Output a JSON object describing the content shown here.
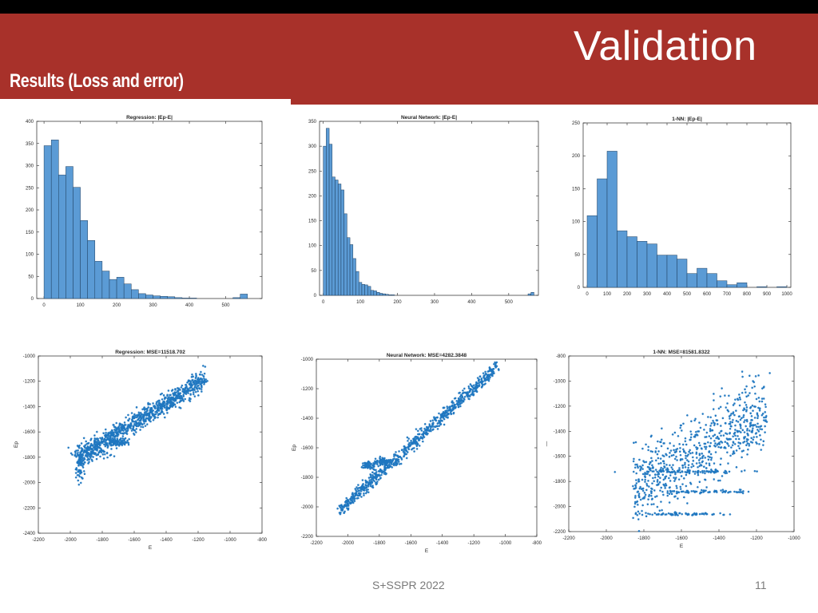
{
  "header": {
    "title": "Validation",
    "subtitle": "Results (Loss and error)"
  },
  "footer": {
    "text": "S+SSPR 2022",
    "page_number": "11"
  },
  "colors": {
    "header_bg": "#a8312a",
    "bar_fill": "#5b9bd5",
    "scatter": "#1f77c0"
  },
  "chart_data": [
    {
      "type": "bar",
      "title": "Regression: |Ep-E|",
      "xlim": [
        -20,
        600
      ],
      "ylim": [
        0,
        400
      ],
      "xticks": [
        0,
        100,
        200,
        300,
        400,
        500
      ],
      "yticks": [
        0,
        50,
        100,
        150,
        200,
        250,
        300,
        350,
        400
      ],
      "bin_width": 20,
      "bin_starts": [
        0,
        20,
        40,
        60,
        80,
        100,
        120,
        140,
        160,
        180,
        200,
        220,
        240,
        260,
        280,
        300,
        320,
        340,
        360,
        380,
        400,
        420,
        440,
        460,
        480,
        500,
        520,
        540
      ],
      "values": [
        345,
        358,
        279,
        298,
        251,
        176,
        131,
        84,
        62,
        43,
        48,
        33,
        20,
        11,
        8,
        6,
        5,
        4,
        2,
        1,
        1,
        0,
        0,
        0,
        0,
        0,
        2,
        10
      ]
    },
    {
      "type": "bar",
      "title": "Neural Network: |Ep-E|",
      "xlim": [
        -10,
        580
      ],
      "ylim": [
        0,
        350
      ],
      "xticks": [
        0,
        100,
        200,
        300,
        400,
        500
      ],
      "yticks": [
        0,
        50,
        100,
        150,
        200,
        250,
        300,
        350
      ],
      "bin_width": 8,
      "bin_starts": [
        0,
        8,
        16,
        24,
        32,
        40,
        48,
        56,
        64,
        72,
        80,
        88,
        96,
        104,
        112,
        120,
        128,
        136,
        144,
        152,
        160,
        168,
        176,
        184,
        192,
        552,
        560
      ],
      "values": [
        300,
        336,
        304,
        238,
        232,
        224,
        212,
        164,
        116,
        102,
        74,
        48,
        26,
        22,
        21,
        18,
        10,
        9,
        6,
        4,
        3,
        2,
        1,
        1,
        0,
        3,
        6
      ]
    },
    {
      "type": "bar",
      "title": "1-NN: |Ep-E|",
      "xlim": [
        -20,
        1020
      ],
      "ylim": [
        0,
        250
      ],
      "xticks": [
        0,
        100,
        200,
        300,
        400,
        500,
        600,
        700,
        800,
        900,
        1000
      ],
      "yticks": [
        0,
        50,
        100,
        150,
        200,
        250
      ],
      "bin_width": 50,
      "bin_starts": [
        0,
        50,
        100,
        150,
        200,
        250,
        300,
        350,
        400,
        450,
        500,
        550,
        600,
        650,
        700,
        750,
        800,
        850,
        900,
        950
      ],
      "values": [
        109,
        165,
        207,
        86,
        77,
        70,
        66,
        49,
        49,
        43,
        21,
        29,
        21,
        10,
        4,
        7,
        0,
        1,
        0,
        1
      ]
    },
    {
      "type": "scatter",
      "title": "Regression: MSE=11518.702",
      "xlabel": "E",
      "ylabel": "Ep",
      "xlim": [
        -2200,
        -800
      ],
      "ylim": [
        -2400,
        -1000
      ],
      "xticks": [
        -2200,
        -2000,
        -1800,
        -1600,
        -1400,
        -1200,
        -1000,
        -800
      ],
      "yticks": [
        -2400,
        -2200,
        -2000,
        -1800,
        -1600,
        -1400,
        -1200,
        -1000
      ],
      "trend": {
        "x0": -1950,
        "y0": -1800,
        "x1": -1150,
        "y1": -1180
      }
    },
    {
      "type": "scatter",
      "title": "Neural Network: MSE=4282.3848",
      "xlabel": "E",
      "ylabel": "Ep",
      "xlim": [
        -2200,
        -800
      ],
      "ylim": [
        -2200,
        -1000
      ],
      "xticks": [
        -2200,
        -2000,
        -1800,
        -1600,
        -1400,
        -1200,
        -1000,
        -800
      ],
      "yticks": [
        -2200,
        -2000,
        -1800,
        -1600,
        -1400,
        -1200,
        -1000
      ],
      "trend": {
        "x0": -2050,
        "y0": -2020,
        "x1": -1050,
        "y1": -1050
      }
    },
    {
      "type": "scatter",
      "title": "1-NN: MSE=81581.8322",
      "xlabel": "E",
      "ylabel": "—",
      "xlim": [
        -2200,
        -1000
      ],
      "ylim": [
        -2200,
        -800
      ],
      "xticks": [
        -2200,
        -2000,
        -1800,
        -1600,
        -1400,
        -1200,
        -1000
      ],
      "yticks": [
        -2200,
        -2000,
        -1800,
        -1600,
        -1400,
        -1200,
        -1000,
        -800
      ],
      "trend": {
        "x0": -1850,
        "y0": -1850,
        "x1": -1150,
        "y1": -1250
      }
    }
  ]
}
